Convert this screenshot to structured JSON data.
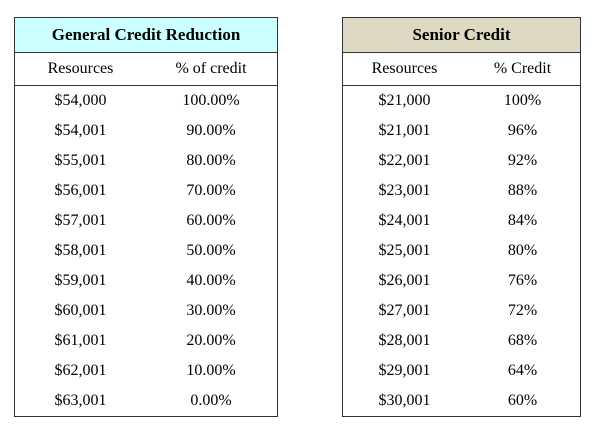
{
  "tables": [
    {
      "title": "General Credit Reduction",
      "columns": [
        "Resources",
        "% of credit"
      ],
      "rows": [
        [
          "$54,000",
          "100.00%"
        ],
        [
          "$54,001",
          "90.00%"
        ],
        [
          "$55,001",
          "80.00%"
        ],
        [
          "$56,001",
          "70.00%"
        ],
        [
          "$57,001",
          "60.00%"
        ],
        [
          "$58,001",
          "50.00%"
        ],
        [
          "$59,001",
          "40.00%"
        ],
        [
          "$60,001",
          "30.00%"
        ],
        [
          "$61,001",
          "20.00%"
        ],
        [
          "$62,001",
          "10.00%"
        ],
        [
          "$63,001",
          "0.00%"
        ]
      ]
    },
    {
      "title": "Senior Credit",
      "columns": [
        "Resources",
        "% Credit"
      ],
      "rows": [
        [
          "$21,000",
          "100%"
        ],
        [
          "$21,001",
          "96%"
        ],
        [
          "$22,001",
          "92%"
        ],
        [
          "$23,001",
          "88%"
        ],
        [
          "$24,001",
          "84%"
        ],
        [
          "$25,001",
          "80%"
        ],
        [
          "$26,001",
          "76%"
        ],
        [
          "$27,001",
          "72%"
        ],
        [
          "$28,001",
          "68%"
        ],
        [
          "$29,001",
          "64%"
        ],
        [
          "$30,001",
          "60%"
        ]
      ]
    }
  ]
}
